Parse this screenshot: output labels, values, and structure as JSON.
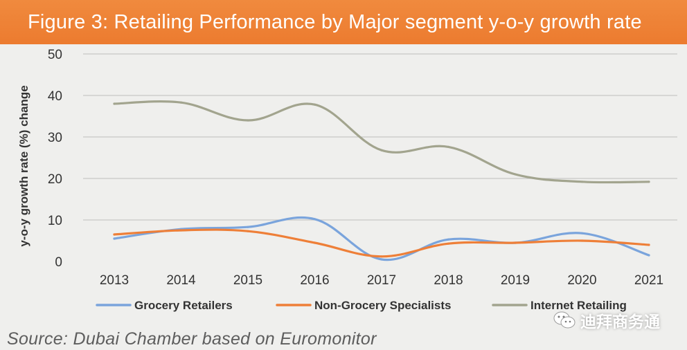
{
  "title": "Figure 3: Retailing Performance by Major segment y-o-y growth rate",
  "source": "Source: Dubai Chamber based on Euromonitor",
  "watermark": {
    "text": "迪拜商务通",
    "icon": "wechat-icon"
  },
  "colors": {
    "title_bg": "#ec7b2f",
    "grocery": "#7aa4dc",
    "non_grocery": "#ee7f38",
    "internet": "#a2a48e",
    "grid": "#c6c6c6",
    "axis_text": "#333333"
  },
  "chart_data": {
    "type": "line",
    "title": "Figure 3: Retailing Performance by Major segment y-o-y growth rate",
    "xlabel": "",
    "ylabel": "y-o-y growth rate (%) change",
    "ylim": [
      0,
      50
    ],
    "yticks": [
      "0",
      "10",
      "20",
      "30",
      "40",
      "50"
    ],
    "categories": [
      "2013",
      "2014",
      "2015",
      "2016",
      "2017",
      "2018",
      "2019",
      "2020",
      "2021"
    ],
    "grid": true,
    "legend_position": "bottom",
    "series": [
      {
        "name": "Grocery Retailers",
        "color_key": "grocery",
        "values": [
          5.5,
          7.8,
          8.3,
          10.2,
          0.5,
          5.3,
          4.5,
          6.8,
          1.5
        ]
      },
      {
        "name": "Non-Grocery Specialists",
        "color_key": "non_grocery",
        "values": [
          6.5,
          7.5,
          7.3,
          4.5,
          1.2,
          4.3,
          4.5,
          5.0,
          4.0
        ]
      },
      {
        "name": "Internet Retailing",
        "color_key": "internet",
        "values": [
          38.0,
          38.3,
          34.0,
          37.8,
          26.8,
          27.6,
          21.0,
          19.2,
          19.2
        ]
      }
    ]
  }
}
